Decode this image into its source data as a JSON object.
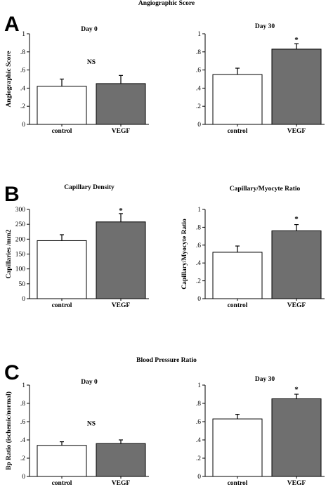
{
  "sections": {
    "a": {
      "letter": "A",
      "title": "Angiographic Score"
    },
    "b": {
      "letter": "B"
    },
    "c": {
      "letter": "C",
      "title": "Blood Pressure Ratio"
    }
  },
  "colors": {
    "control_fill": "#ffffff",
    "vegf_fill": "#6f6f6f",
    "axis": "#000000"
  },
  "chart_data": [
    {
      "id": "a-day0",
      "type": "bar",
      "title": "Day 0",
      "ylabel": "Angiographic Score",
      "ylim": [
        0,
        1
      ],
      "yticks": [
        "0",
        ".2",
        ".4",
        ".6",
        ".8",
        "1"
      ],
      "categories": [
        "control",
        "VEGF"
      ],
      "values": [
        0.42,
        0.45
      ],
      "errors": [
        0.08,
        0.09
      ],
      "annotations": [
        {
          "text": "NS",
          "x": 0.5,
          "y": 0.69
        }
      ]
    },
    {
      "id": "a-day30",
      "type": "bar",
      "title": "Day 30",
      "ylabel": "",
      "ylim": [
        0,
        1
      ],
      "yticks": [
        "0",
        ".2",
        ".4",
        ".6",
        ".8",
        "1"
      ],
      "categories": [
        "control",
        "VEGF"
      ],
      "values": [
        0.55,
        0.83
      ],
      "errors": [
        0.07,
        0.06
      ],
      "annotations": [
        {
          "text": "*",
          "x": 1,
          "y": 0.93
        }
      ]
    },
    {
      "id": "b-density",
      "type": "bar",
      "title": "Capillary Density",
      "ylabel": "Capillaries /mm2",
      "ylim": [
        0,
        300
      ],
      "yticks": [
        "0",
        "50",
        "100",
        "150",
        "200",
        "250",
        "300"
      ],
      "categories": [
        "control",
        "VEGF"
      ],
      "values": [
        195,
        258
      ],
      "errors": [
        20,
        28
      ],
      "annotations": [
        {
          "text": "*",
          "x": 1,
          "y": 295
        }
      ]
    },
    {
      "id": "b-ratio",
      "type": "bar",
      "title": "Capillary/Myocyte Ratio",
      "ylabel": "Capillary/Myocyte Ratio",
      "ylim": [
        0,
        1
      ],
      "yticks": [
        "0",
        ".2",
        ".4",
        ".6",
        ".8",
        "1"
      ],
      "categories": [
        "control",
        "VEGF"
      ],
      "values": [
        0.52,
        0.76
      ],
      "errors": [
        0.07,
        0.07
      ],
      "annotations": [
        {
          "text": "*",
          "x": 1,
          "y": 0.89
        }
      ]
    },
    {
      "id": "c-day0",
      "type": "bar",
      "title": "Day 0",
      "ylabel": "Bp Ratio (ischemic/normal)",
      "ylim": [
        0,
        1
      ],
      "yticks": [
        "0",
        ".2",
        ".4",
        ".6",
        ".8",
        "1"
      ],
      "categories": [
        "control",
        "VEGF"
      ],
      "values": [
        0.34,
        0.36
      ],
      "errors": [
        0.04,
        0.04
      ],
      "annotations": [
        {
          "text": "NS",
          "x": 0.5,
          "y": 0.58
        }
      ]
    },
    {
      "id": "c-day30",
      "type": "bar",
      "title": "Day 30",
      "ylabel": "",
      "ylim": [
        0,
        1
      ],
      "yticks": [
        "0",
        ".2",
        ".4",
        ".6",
        ".8",
        "1"
      ],
      "categories": [
        "control",
        "VEGF"
      ],
      "values": [
        0.63,
        0.85
      ],
      "errors": [
        0.05,
        0.05
      ],
      "annotations": [
        {
          "text": "*",
          "x": 1,
          "y": 0.95
        }
      ]
    }
  ]
}
